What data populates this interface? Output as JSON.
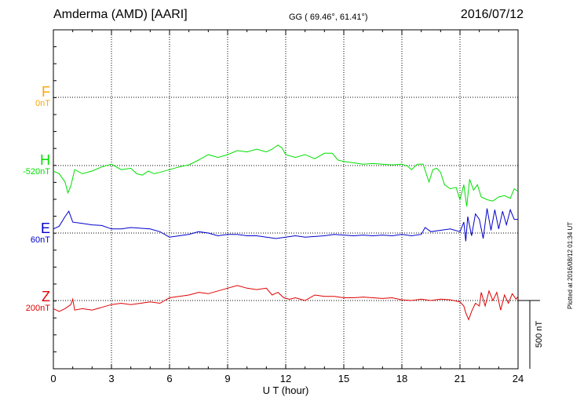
{
  "header": {
    "title": "Amderma (AMD)  [AARI]",
    "coords": "GG ( 69.46°,  61.41°)",
    "date": "2016/07/12"
  },
  "plotted_note": "Plotted at 2016/08/12 01:34 UT",
  "colors": {
    "F": "#ffa500",
    "H": "#00e000",
    "E": "#0000cc",
    "Z": "#e00000"
  },
  "chart_data": {
    "type": "line",
    "xlabel": "U T (hour)",
    "xlim": [
      0,
      24
    ],
    "xticks": [
      0,
      3,
      6,
      9,
      12,
      15,
      18,
      21,
      24
    ],
    "grid": true,
    "scale_bar": {
      "label": "500 nT",
      "value_nT": 500
    },
    "channels": [
      {
        "name": "F",
        "baseline_label": "0nT",
        "x": [],
        "values": []
      },
      {
        "name": "H",
        "baseline_label": "-520nT",
        "x": [
          0,
          0.3,
          0.6,
          0.75,
          0.9,
          1.1,
          1.5,
          2.0,
          2.5,
          3.0,
          3.5,
          4.0,
          4.3,
          4.6,
          4.9,
          5.2,
          5.5,
          6.0,
          6.5,
          7.0,
          7.5,
          8.0,
          8.5,
          9.0,
          9.5,
          10.0,
          10.5,
          11.0,
          11.3,
          11.6,
          11.8,
          12.0,
          12.5,
          13.0,
          13.5,
          14.0,
          14.4,
          14.7,
          15.0,
          15.5,
          16.0,
          16.5,
          17.0,
          17.5,
          18.0,
          18.3,
          18.5,
          18.8,
          19.1,
          19.4,
          19.6,
          19.8,
          20.0,
          20.2,
          20.5,
          20.8,
          21.0,
          21.2,
          21.35,
          21.5,
          21.7,
          21.9,
          22.1,
          22.4,
          22.7,
          23.0,
          23.3,
          23.6,
          23.8,
          24.0
        ],
        "values": [
          -40,
          -60,
          -120,
          -200,
          -150,
          -30,
          -60,
          -40,
          -10,
          10,
          -30,
          -20,
          -60,
          -70,
          -40,
          -60,
          -50,
          -30,
          -10,
          5,
          40,
          80,
          60,
          80,
          110,
          100,
          120,
          100,
          120,
          150,
          130,
          80,
          60,
          80,
          50,
          90,
          90,
          40,
          30,
          20,
          10,
          15,
          10,
          5,
          10,
          -5,
          -30,
          10,
          10,
          -120,
          -30,
          -20,
          -50,
          -140,
          -170,
          -160,
          -250,
          -140,
          -300,
          -100,
          -180,
          -140,
          -230,
          -250,
          -260,
          -230,
          -220,
          -240,
          -170,
          -190
        ]
      },
      {
        "name": "E",
        "baseline_label": "60nT",
        "x": [
          0,
          0.3,
          0.6,
          0.8,
          1.0,
          1.5,
          2.0,
          2.5,
          3.0,
          3.5,
          4.0,
          4.5,
          5.0,
          5.5,
          6.0,
          6.5,
          7.0,
          7.5,
          8.0,
          8.5,
          9.0,
          9.5,
          10.0,
          10.5,
          11.0,
          11.5,
          12.0,
          12.5,
          13.0,
          13.5,
          14.0,
          14.5,
          15.0,
          15.5,
          16.0,
          16.5,
          17.0,
          17.5,
          18.0,
          18.5,
          19.0,
          19.2,
          19.5,
          20.0,
          20.5,
          21.0,
          21.2,
          21.3,
          21.4,
          21.6,
          21.8,
          22.0,
          22.2,
          22.4,
          22.6,
          22.8,
          23.0,
          23.2,
          23.4,
          23.6,
          23.8,
          24.0
        ],
        "values": [
          30,
          50,
          120,
          160,
          80,
          70,
          60,
          55,
          30,
          30,
          40,
          35,
          30,
          10,
          -30,
          -20,
          -10,
          10,
          0,
          -20,
          -10,
          -10,
          -20,
          -20,
          -30,
          -40,
          -30,
          -20,
          -30,
          -25,
          -20,
          -10,
          -15,
          -20,
          -15,
          -20,
          -15,
          -20,
          -10,
          -20,
          -10,
          40,
          10,
          20,
          30,
          10,
          80,
          -60,
          120,
          -20,
          140,
          100,
          -40,
          180,
          20,
          170,
          30,
          160,
          60,
          170,
          100,
          100
        ]
      },
      {
        "name": "Z",
        "baseline_label": "200nT",
        "x": [
          0,
          0.3,
          0.6,
          0.9,
          1.0,
          1.1,
          1.5,
          2.0,
          2.5,
          3.0,
          3.5,
          4.0,
          4.5,
          5.0,
          5.5,
          6.0,
          6.5,
          7.0,
          7.5,
          8.0,
          8.5,
          9.0,
          9.5,
          10.0,
          10.5,
          11.0,
          11.3,
          11.6,
          11.9,
          12.2,
          12.5,
          13.0,
          13.5,
          14.0,
          14.5,
          15.0,
          15.5,
          16.0,
          16.5,
          17.0,
          17.5,
          18.0,
          18.5,
          19.0,
          19.5,
          20.0,
          20.5,
          21.0,
          21.2,
          21.3,
          21.45,
          21.6,
          21.8,
          22.0,
          22.1,
          22.3,
          22.5,
          22.7,
          22.9,
          23.1,
          23.3,
          23.5,
          23.7,
          23.9,
          24.0
        ],
        "values": [
          -60,
          -80,
          -60,
          -30,
          10,
          -70,
          -60,
          -70,
          -50,
          -30,
          -20,
          -30,
          -20,
          -10,
          -20,
          20,
          30,
          40,
          60,
          50,
          70,
          90,
          110,
          90,
          80,
          90,
          40,
          60,
          20,
          10,
          20,
          0,
          40,
          30,
          30,
          20,
          20,
          25,
          20,
          15,
          20,
          5,
          0,
          10,
          0,
          10,
          5,
          -10,
          -40,
          -90,
          -140,
          -80,
          -20,
          -40,
          60,
          -40,
          70,
          0,
          60,
          -70,
          40,
          -20,
          50,
          10,
          30
        ]
      },
      {
        "name": "_scale_axis",
        "baseline_label": "",
        "x": [],
        "values": []
      }
    ]
  }
}
